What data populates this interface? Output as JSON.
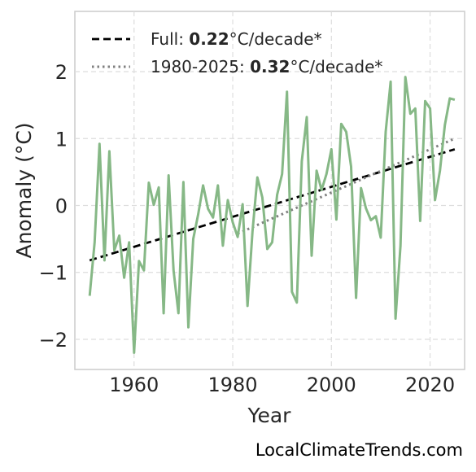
{
  "chart_data": {
    "type": "line",
    "xlabel": "Year",
    "ylabel": "Anomaly (°C)",
    "xlim": [
      1948,
      2027
    ],
    "ylim": [
      -2.45,
      2.9
    ],
    "x_ticks": [
      1960,
      1980,
      2000,
      2020
    ],
    "y_ticks": [
      -2,
      -1,
      0,
      1,
      2
    ],
    "x_tick_labels": [
      "1960",
      "1980",
      "2000",
      "2020"
    ],
    "y_tick_labels": [
      "−2",
      "−1",
      "0",
      "1",
      "2"
    ],
    "grid": true,
    "legend_position": "top-left",
    "colors": {
      "series": "#86b886",
      "full_trend": "#000000",
      "recent_trend": "#808080",
      "grid": "#dddddd",
      "frame": "#cccccc"
    },
    "series": [
      {
        "x": [
          1951,
          1952,
          1953,
          1954,
          1955,
          1956,
          1957,
          1958,
          1959,
          1960,
          1961,
          1962,
          1963,
          1964,
          1965,
          1966,
          1967,
          1968,
          1969,
          1970,
          1971,
          1972,
          1973,
          1974,
          1975,
          1976,
          1977,
          1978,
          1979,
          1980,
          1981,
          1982,
          1983,
          1984,
          1985,
          1986,
          1987,
          1988,
          1989,
          1990,
          1991,
          1992,
          1993,
          1994,
          1995,
          1996,
          1997,
          1998,
          1999,
          2000,
          2001,
          2002,
          2003,
          2004,
          2005,
          2006,
          2007,
          2008,
          2009,
          2010,
          2011,
          2012,
          2013,
          2014,
          2015,
          2016,
          2017,
          2018,
          2019,
          2020,
          2021,
          2022,
          2023,
          2024,
          2025
        ],
        "values": [
          -1.35,
          -0.55,
          0.92,
          -0.82,
          0.81,
          -0.67,
          -0.45,
          -1.08,
          -0.55,
          -2.2,
          -0.83,
          -0.97,
          0.34,
          0.01,
          0.27,
          -1.61,
          0.45,
          -0.97,
          -1.61,
          0.35,
          -1.82,
          -0.5,
          -0.13,
          0.3,
          -0.05,
          -0.18,
          0.3,
          -0.6,
          0.08,
          -0.25,
          -0.47,
          0.02,
          -1.5,
          -0.39,
          0.42,
          0.12,
          -0.65,
          -0.55,
          0.16,
          0.47,
          1.7,
          -1.29,
          -1.45,
          0.66,
          1.32,
          -0.75,
          0.52,
          0.23,
          0.47,
          0.84,
          -0.21,
          1.22,
          1.1,
          0.58,
          -1.38,
          0.26,
          -0.04,
          -0.22,
          -0.16,
          -0.48,
          1.1,
          1.85,
          -1.69,
          -0.6,
          1.92,
          1.37,
          1.45,
          -0.23,
          1.56,
          1.45,
          0.08,
          0.52,
          1.2,
          1.6,
          1.58
        ]
      }
    ],
    "trends": [
      {
        "x_start": 1951,
        "x_end": 2025,
        "y_start": -0.82,
        "y_end": 0.84,
        "style": "dashed",
        "legend_prefix": "Full: ",
        "legend_value": "0.22",
        "legend_suffix": "°C/decade*"
      },
      {
        "x_start": 1981,
        "x_end": 2025,
        "y_start": -0.42,
        "y_end": 1.0,
        "style": "dotted",
        "legend_prefix": "1980-2025: ",
        "legend_value": "0.32",
        "legend_suffix": "°C/decade*"
      }
    ]
  },
  "watermark": "LocalClimateTrends.com"
}
